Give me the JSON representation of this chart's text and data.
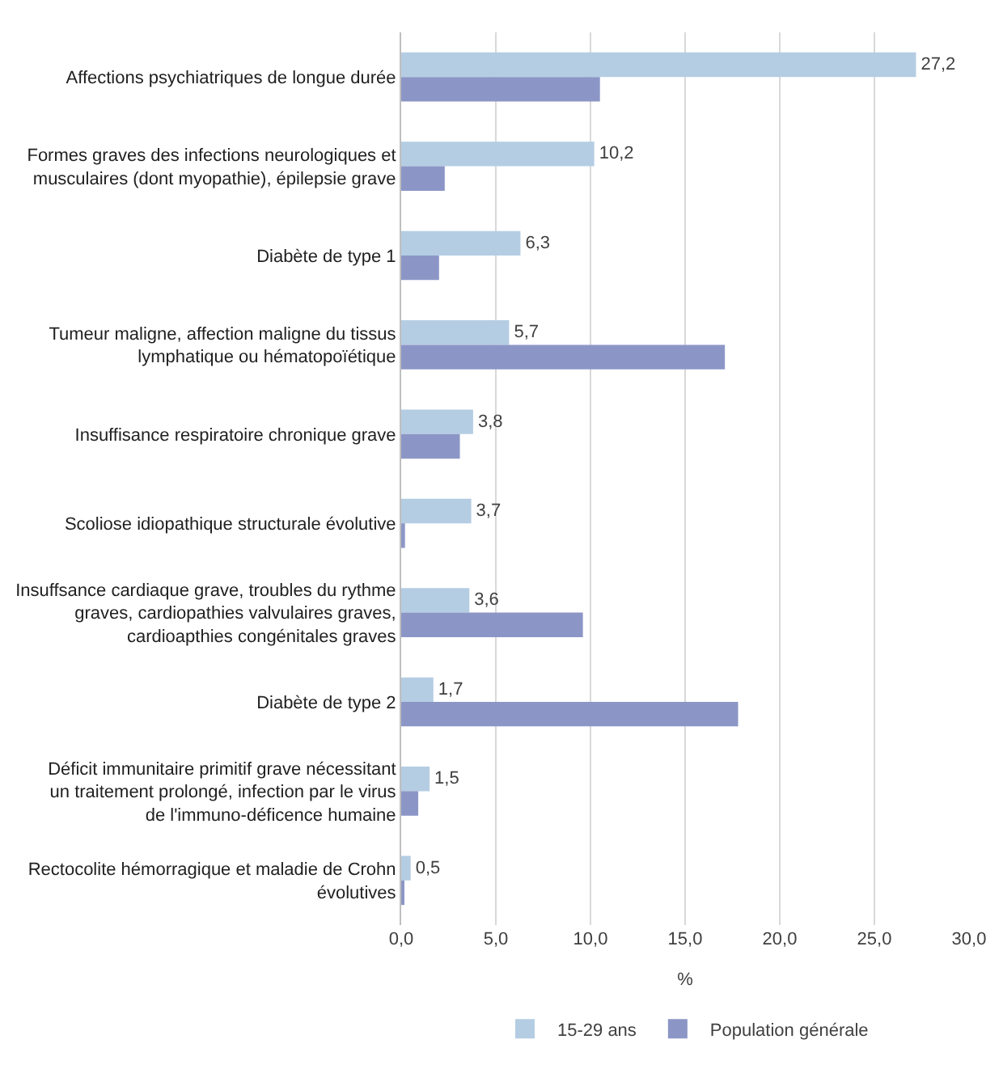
{
  "chart_data": {
    "type": "bar",
    "orientation": "horizontal",
    "xlabel": "%",
    "categories": [
      "Affections psychiatriques de longue durée",
      "Formes graves des infections neurologiques et musculaires (dont myopathie), épilepsie grave",
      "Diabète de type 1",
      "Tumeur maligne, affection maligne du tissus lymphatique ou hématopoïétique",
      "Insuffisance respiratoire chronique grave",
      "Scoliose idiopathique structurale évolutive",
      "Insuffsance cardiaque grave, troubles du rythme graves, cardiopathies valvulaires graves, cardioapthies congénitales graves",
      "Diabète de type 2",
      "Déficit immunitaire primitif grave nécessitant un traitement prolongé, infection par le virus de l'immuno-déficence humaine",
      "Rectocolite hémorragique et maladie de Crohn évolutives"
    ],
    "series": [
      {
        "name": "15-29 ans",
        "color": "#b4cde3",
        "values": [
          27.2,
          10.2,
          6.3,
          5.7,
          3.8,
          3.7,
          3.6,
          1.7,
          1.5,
          0.5
        ],
        "value_labels": [
          "27,2",
          "10,2",
          "6,3",
          "5,7",
          "3,8",
          "3,7",
          "3,6",
          "1,7",
          "1,5",
          "0,5"
        ]
      },
      {
        "name": "Population générale",
        "color": "#8c96c6",
        "values": [
          10.5,
          2.3,
          2.0,
          17.1,
          3.1,
          0.2,
          9.6,
          17.8,
          0.9,
          0.1
        ]
      }
    ],
    "xlim": [
      0,
      30
    ],
    "xticks": [
      {
        "value": 0,
        "label": "0,0"
      },
      {
        "value": 5,
        "label": "5,0"
      },
      {
        "value": 10,
        "label": "10,0"
      },
      {
        "value": 15,
        "label": "15,0"
      },
      {
        "value": 20,
        "label": "20,0"
      },
      {
        "value": 25,
        "label": "25,0"
      },
      {
        "value": 30,
        "label": "30,0"
      }
    ],
    "grid": "x",
    "legend": "bottom"
  }
}
